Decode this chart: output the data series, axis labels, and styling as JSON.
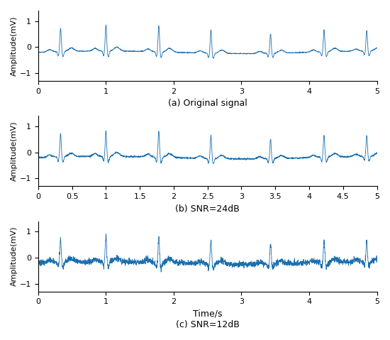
{
  "label_a": "(a) Original signal",
  "label_b": "(b) SNR=24dB",
  "label_c": "(c) SNR=12dB",
  "xlabel": "Time/s",
  "ylabel": "Amplitude(mV)",
  "xlim": [
    0,
    5
  ],
  "ylim": [
    -1.3,
    1.4
  ],
  "line_color": "#1a6faf",
  "line_width": 0.6,
  "background_color": "#ffffff",
  "yticks": [
    -1,
    0,
    1
  ],
  "xticks_a": [
    0,
    1,
    2,
    3,
    4,
    5
  ],
  "xticks_b": [
    0,
    0.5,
    1,
    1.5,
    2,
    2.5,
    3,
    3.5,
    4,
    4.5,
    5
  ],
  "xticks_c": [
    0,
    1,
    2,
    3,
    4,
    5
  ],
  "seed": 42,
  "n_points": 2500,
  "beat_times": [
    0.33,
    1.0,
    1.78,
    2.55,
    3.43,
    4.22,
    4.85
  ],
  "amplitudes": [
    0.9,
    1.0,
    1.0,
    0.9,
    0.75,
    0.85,
    0.8
  ],
  "snr_24": 24,
  "snr_12": 12
}
